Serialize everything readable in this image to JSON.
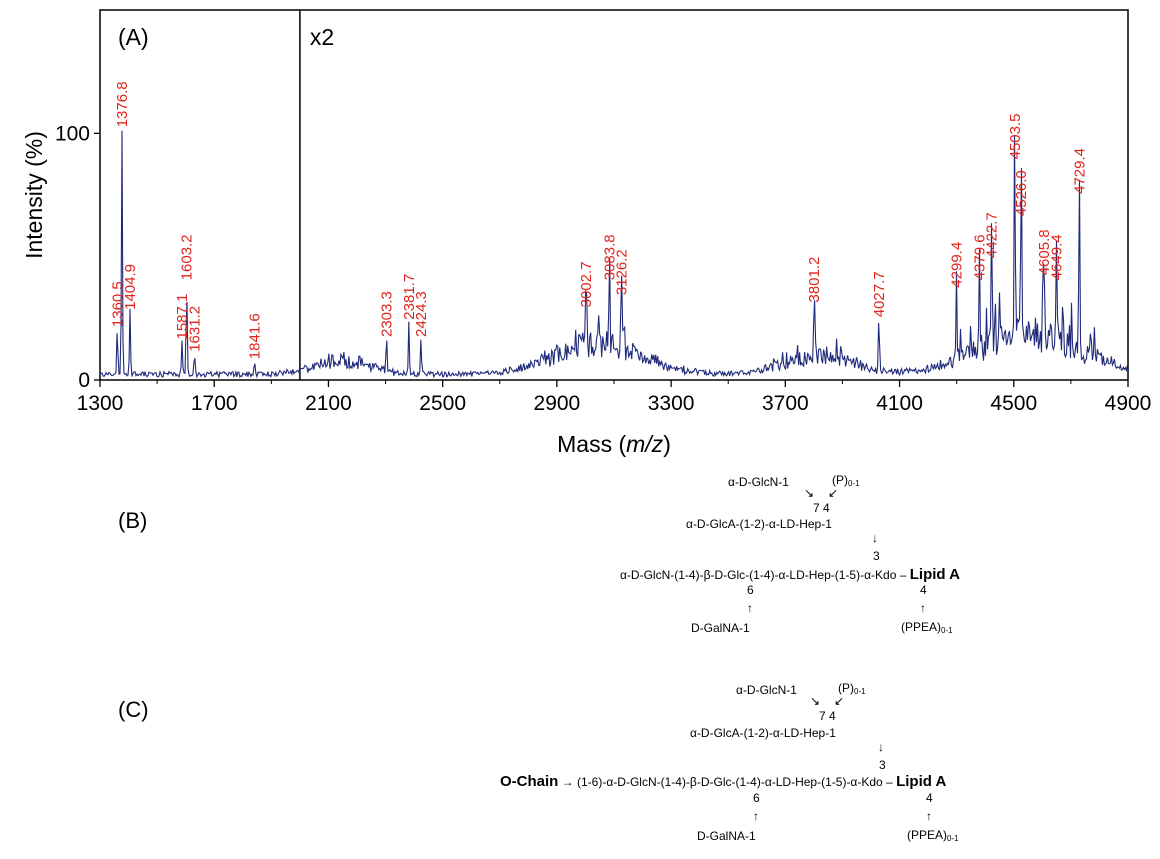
{
  "chart_data": {
    "type": "line",
    "xlabel": "Mass (m/z)",
    "ylabel": "Intensity (%)",
    "xlim": [
      1300,
      4900
    ],
    "ylim": [
      0,
      150
    ],
    "x_ticks": [
      "1300",
      "1700",
      "2100",
      "2500",
      "2900",
      "3300",
      "3700",
      "4100",
      "4500",
      "4900"
    ],
    "y_ticks": [
      "0",
      "100"
    ],
    "panel_label": "(A)",
    "zoom_label": "x2",
    "zoom_start": 2000,
    "line_color": "#1f2a7a",
    "label_color": "#e0231c",
    "peaks": [
      {
        "x": 1360.5,
        "y": 19,
        "label": "1360.5"
      },
      {
        "x": 1376.8,
        "y": 100,
        "label": "1376.8"
      },
      {
        "x": 1404.9,
        "y": 26,
        "label": "1404.9"
      },
      {
        "x": 1587.1,
        "y": 14,
        "label": "1587.1"
      },
      {
        "x": 1603.2,
        "y": 38,
        "label": "1603.2"
      },
      {
        "x": 1631.2,
        "y": 9,
        "label": "1631.2"
      },
      {
        "x": 1841.6,
        "y": 6,
        "label": "1841.6"
      },
      {
        "x": 2303.3,
        "y": 15,
        "label": "2303.3"
      },
      {
        "x": 2381.7,
        "y": 22,
        "label": "2381.7"
      },
      {
        "x": 2424.3,
        "y": 15,
        "label": "2424.3"
      },
      {
        "x": 3002.7,
        "y": 27,
        "label": "3002.7"
      },
      {
        "x": 3083.8,
        "y": 38,
        "label": "3083.8"
      },
      {
        "x": 3126.2,
        "y": 32,
        "label": "3126.2"
      },
      {
        "x": 3801.2,
        "y": 29,
        "label": "3801.2"
      },
      {
        "x": 4027.7,
        "y": 23,
        "label": "4027.7"
      },
      {
        "x": 4299.4,
        "y": 35,
        "label": "4299.4"
      },
      {
        "x": 4379.6,
        "y": 38,
        "label": "4379.6"
      },
      {
        "x": 4422.7,
        "y": 47,
        "label": "4422.7"
      },
      {
        "x": 4503.5,
        "y": 87,
        "label": "4503.5"
      },
      {
        "x": 4526.0,
        "y": 64,
        "label": "4526.0"
      },
      {
        "x": 4605.8,
        "y": 40,
        "label": "4605.8"
      },
      {
        "x": 4649.4,
        "y": 38,
        "label": "4649.4"
      },
      {
        "x": 4729.4,
        "y": 73,
        "label": "4729.4"
      }
    ],
    "baseline_humps": [
      {
        "center": 2150,
        "width": 130,
        "height": 6
      },
      {
        "center": 3050,
        "width": 220,
        "height": 12
      },
      {
        "center": 3820,
        "width": 160,
        "height": 8
      },
      {
        "center": 4550,
        "width": 260,
        "height": 16
      }
    ]
  },
  "schemes": [
    {
      "panel_label": "(B)",
      "top_left": "α-D-GlcN-1",
      "top_right_p": "(P)",
      "top_right_sub": "0-1",
      "arrow_left": "↘",
      "arrow_right": "↙",
      "pos_7_4": "7 4",
      "glca_line": "α-D-GlcA-(1-2)-α-LD-Hep-1",
      "down_arrow": "↓",
      "pos_3": "3",
      "prefix_bold": "",
      "prefix_arrow": "",
      "main_chain": "α-D-GlcN-(1-4)-β-D-Glc-(1-4)-α-LD-Hep-(1-5)-α-Kdo –",
      "lipid_a": "Lipid A",
      "pos_6": "6",
      "pos_4": "4",
      "up_arrow_left": "↑",
      "up_arrow_right": "↑",
      "galna": "D-GalNA-1",
      "ppea": "(PPEA)",
      "ppea_sub": "0-1"
    },
    {
      "panel_label": "(C)",
      "top_left": "α-D-GlcN-1",
      "top_right_p": "(P)",
      "top_right_sub": "0-1",
      "arrow_left": "↘",
      "arrow_right": "↙",
      "pos_7_4": "7 4",
      "glca_line": "α-D-GlcA-(1-2)-α-LD-Hep-1",
      "down_arrow": "↓",
      "pos_3": "3",
      "prefix_bold": "O-Chain",
      "prefix_arrow": " → (1-6)-",
      "main_chain": "α-D-GlcN-(1-4)-β-D-Glc-(1-4)-α-LD-Hep-(1-5)-α-Kdo –",
      "lipid_a": "Lipid A",
      "pos_6": "6",
      "pos_4": "4",
      "up_arrow_left": "↑",
      "up_arrow_right": "↑",
      "galna": "D-GalNA-1",
      "ppea": "(PPEA)",
      "ppea_sub": "0-1"
    }
  ]
}
